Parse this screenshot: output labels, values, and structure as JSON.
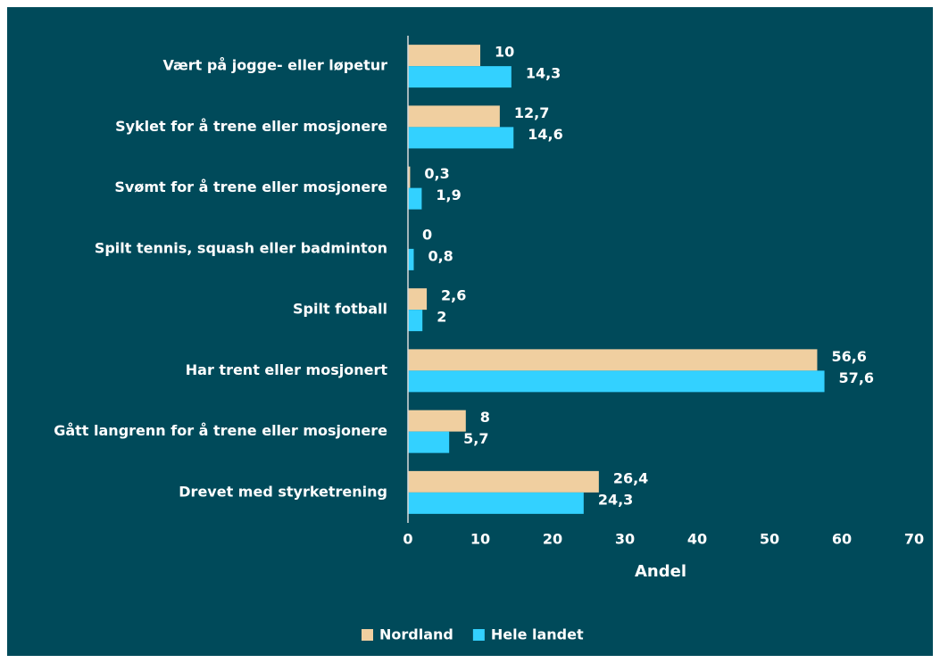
{
  "chart_data": {
    "type": "bar",
    "orientation": "horizontal",
    "x_label": "Andel",
    "categories": [
      "Vært på jogge- eller løpetur",
      "Syklet for å trene eller mosjonere",
      "Svømt for å trene eller mosjonere",
      "Spilt tennis, squash eller badminton",
      "Spilt fotball",
      "Har trent eller mosjonert",
      "Gått langrenn for å trene eller mosjonere",
      "Drevet med styrketrening"
    ],
    "series": [
      {
        "name": "Nordland",
        "color": "#f0cfa0",
        "values": [
          10,
          12.7,
          0.3,
          0,
          2.6,
          56.6,
          8,
          26.4
        ],
        "value_labels": [
          "10",
          "12,7",
          "0,3",
          "0",
          "2,6",
          "56,6",
          "8",
          "26,4"
        ]
      },
      {
        "name": "Hele landet",
        "color": "#33d1ff",
        "values": [
          14.3,
          14.6,
          1.9,
          0.8,
          2,
          57.6,
          5.7,
          24.3
        ],
        "value_labels": [
          "14,3",
          "14,6",
          "1,9",
          "0,8",
          "2",
          "57,6",
          "5,7",
          "24,3"
        ]
      }
    ],
    "xlim": [
      0,
      70
    ],
    "xticks": [
      0,
      10,
      20,
      30,
      40,
      50,
      60,
      70
    ],
    "legend": "bottom"
  }
}
